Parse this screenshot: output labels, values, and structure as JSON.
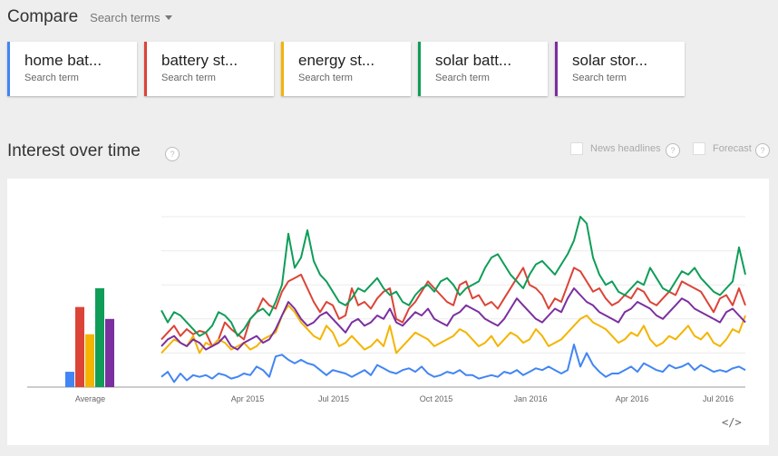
{
  "header": {
    "title": "Compare",
    "search_terms_label": "Search terms"
  },
  "terms": [
    {
      "label": "home bat...",
      "sub": "Search term",
      "color": "#4285f4"
    },
    {
      "label": "battery st...",
      "sub": "Search term",
      "color": "#db4437"
    },
    {
      "label": "energy st...",
      "sub": "Search term",
      "color": "#f4b400"
    },
    {
      "label": "solar batt...",
      "sub": "Search term",
      "color": "#0f9d58"
    },
    {
      "label": "solar stor...",
      "sub": "Search term",
      "color": "#7b2fa0"
    }
  ],
  "section": {
    "title": "Interest over time",
    "help_icon": "?",
    "news_headlines": "News headlines",
    "forecast": "Forecast"
  },
  "embed_label": "</>",
  "chart_data": {
    "type": "line",
    "x_ticks": [
      "Apr 2015",
      "Jul 2015",
      "Oct 2015",
      "Jan 2016",
      "Apr 2016",
      "Jul 2016"
    ],
    "ylim": [
      0,
      100
    ],
    "grid": true,
    "average_label": "Average",
    "averages": [
      {
        "name": "home bat...",
        "value": 9
      },
      {
        "name": "battery st...",
        "value": 47
      },
      {
        "name": "energy st...",
        "value": 31
      },
      {
        "name": "solar batt...",
        "value": 58
      },
      {
        "name": "solar stor...",
        "value": 40
      }
    ],
    "series": [
      {
        "name": "home bat...",
        "values": [
          6,
          9,
          3,
          8,
          4,
          7,
          6,
          7,
          5,
          8,
          7,
          5,
          6,
          8,
          7,
          12,
          10,
          6,
          18,
          19,
          16,
          14,
          16,
          14,
          13,
          10,
          7,
          10,
          9,
          8,
          6,
          8,
          10,
          7,
          13,
          11,
          9,
          8,
          10,
          11,
          9,
          12,
          8,
          6,
          7,
          9,
          8,
          10,
          7,
          7,
          5,
          6,
          7,
          6,
          9,
          8,
          10,
          7,
          9,
          11,
          10,
          12,
          10,
          8,
          10,
          25,
          12,
          20,
          13,
          9,
          6,
          8,
          8,
          10,
          12,
          9,
          14,
          12,
          10,
          9,
          13,
          11,
          12,
          14,
          10,
          13,
          11,
          9,
          10,
          9,
          11,
          12,
          10
        ]
      },
      {
        "name": "battery st...",
        "values": [
          28,
          32,
          36,
          30,
          34,
          31,
          33,
          32,
          24,
          28,
          38,
          34,
          31,
          28,
          40,
          44,
          52,
          48,
          46,
          56,
          62,
          64,
          66,
          58,
          50,
          44,
          50,
          48,
          40,
          42,
          58,
          48,
          50,
          46,
          52,
          56,
          58,
          40,
          38,
          46,
          50,
          56,
          62,
          58,
          54,
          50,
          48,
          60,
          62,
          52,
          54,
          48,
          50,
          46,
          52,
          58,
          64,
          70,
          60,
          58,
          54,
          46,
          52,
          50,
          60,
          70,
          68,
          62,
          56,
          58,
          52,
          48,
          50,
          54,
          52,
          58,
          56,
          50,
          48,
          52,
          56,
          54,
          62,
          60,
          58,
          56,
          50,
          44,
          52,
          54,
          48,
          58,
          48
        ]
      },
      {
        "name": "energy st...",
        "values": [
          20,
          24,
          28,
          26,
          24,
          30,
          20,
          26,
          24,
          28,
          26,
          22,
          24,
          26,
          22,
          24,
          28,
          30,
          32,
          42,
          48,
          44,
          38,
          34,
          30,
          28,
          36,
          32,
          24,
          26,
          30,
          26,
          22,
          24,
          28,
          24,
          36,
          20,
          24,
          28,
          32,
          30,
          28,
          24,
          26,
          28,
          30,
          34,
          32,
          28,
          24,
          26,
          30,
          24,
          28,
          32,
          30,
          26,
          28,
          34,
          30,
          24,
          26,
          28,
          32,
          36,
          40,
          42,
          38,
          36,
          34,
          30,
          26,
          28,
          32,
          30,
          36,
          28,
          24,
          26,
          30,
          28,
          32,
          36,
          30,
          28,
          32,
          26,
          24,
          28,
          34,
          32,
          42
        ]
      },
      {
        "name": "solar batt...",
        "values": [
          45,
          38,
          44,
          42,
          38,
          34,
          30,
          32,
          36,
          44,
          42,
          38,
          30,
          34,
          40,
          44,
          46,
          42,
          50,
          60,
          90,
          70,
          76,
          92,
          74,
          66,
          62,
          56,
          50,
          48,
          52,
          58,
          56,
          60,
          64,
          58,
          54,
          56,
          50,
          48,
          54,
          58,
          60,
          56,
          62,
          64,
          60,
          54,
          58,
          60,
          62,
          70,
          76,
          78,
          72,
          66,
          62,
          58,
          66,
          72,
          74,
          70,
          66,
          72,
          78,
          86,
          100,
          96,
          76,
          66,
          60,
          62,
          56,
          54,
          58,
          62,
          60,
          70,
          64,
          58,
          56,
          62,
          68,
          66,
          70,
          64,
          60,
          56,
          54,
          58,
          62,
          82,
          66
        ]
      },
      {
        "name": "solar stor...",
        "values": [
          24,
          28,
          30,
          26,
          24,
          28,
          26,
          22,
          24,
          26,
          30,
          24,
          22,
          26,
          28,
          30,
          26,
          28,
          34,
          42,
          50,
          46,
          40,
          36,
          38,
          42,
          44,
          40,
          36,
          32,
          38,
          40,
          36,
          38,
          42,
          40,
          46,
          38,
          36,
          40,
          44,
          42,
          46,
          40,
          38,
          36,
          42,
          44,
          48,
          46,
          44,
          40,
          38,
          36,
          40,
          46,
          52,
          48,
          44,
          40,
          38,
          42,
          46,
          44,
          52,
          58,
          54,
          50,
          48,
          44,
          42,
          40,
          38,
          44,
          46,
          50,
          48,
          46,
          42,
          40,
          44,
          48,
          52,
          50,
          46,
          44,
          42,
          40,
          38,
          44,
          46,
          42,
          38
        ]
      }
    ]
  }
}
